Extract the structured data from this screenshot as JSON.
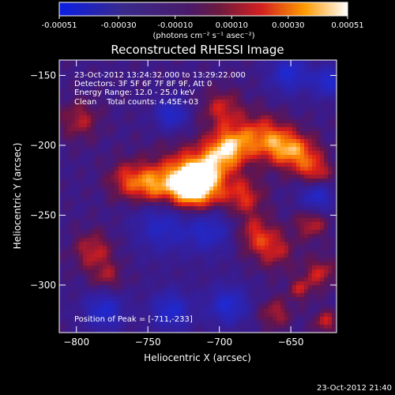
{
  "chart_data": {
    "type": "heatmap",
    "title": "Reconstructed RHESSI Image",
    "colorbar": {
      "ticks": [
        "-0.00051",
        "-0.00030",
        "-0.00010",
        "0.00010",
        "0.00030",
        "0.00051"
      ],
      "tick_values": [
        -0.00051,
        -0.0003,
        -0.0001,
        0.0001,
        0.0003,
        0.00051
      ],
      "range": [
        -0.00051,
        0.00051
      ],
      "unit_label": "(photons cm⁻² s⁻¹ asec⁻²)"
    },
    "xlabel": "Heliocentric X (arcsec)",
    "ylabel": "Heliocentric Y (arcsec)",
    "xlim": [
      -812,
      -618
    ],
    "ylim": [
      -334,
      -139
    ],
    "xticks": [
      -800,
      -750,
      -700,
      -650
    ],
    "yticks": [
      -150,
      -200,
      -250,
      -300
    ],
    "annotations": [
      "23-Oct-2012 13:24:32.000 to 13:29:22.000",
      "Detectors: 3F 5F 6F 7F 8F 9F, Att 0",
      "Energy Range: 12.0 - 25.0 keV",
      "Clean    Total counts: 4.45E+03"
    ],
    "peak_label": "Position of Peak = [-711,-233]",
    "peak": {
      "x": -711,
      "y": -233
    },
    "timestamp": "23-Oct-2012 21:40"
  }
}
